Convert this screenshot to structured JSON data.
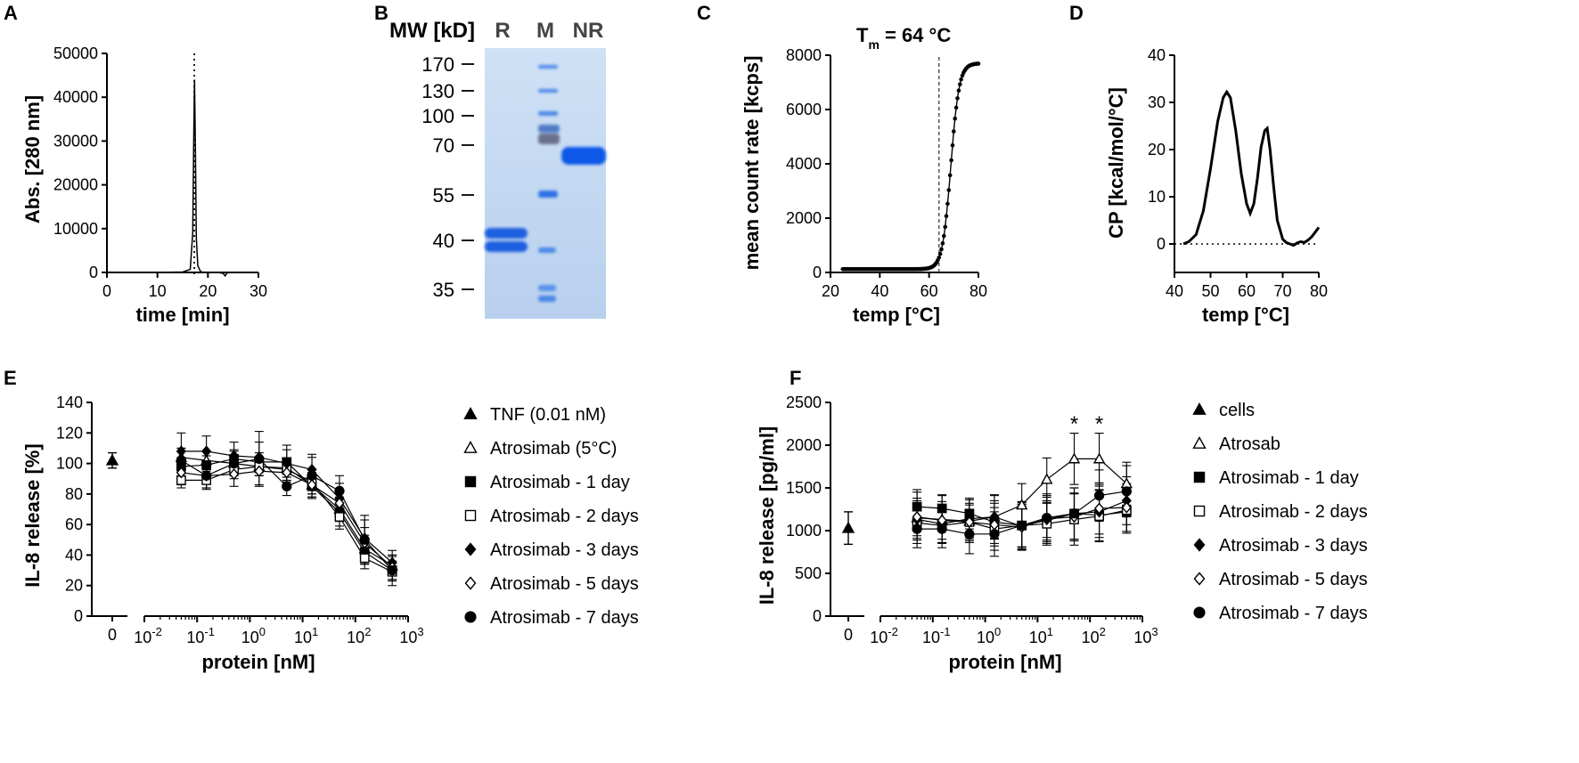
{
  "panels": {
    "a": "A",
    "b": "B",
    "c": "C",
    "d": "D",
    "e": "E",
    "f": "F"
  },
  "chart_data": [
    {
      "id": "A",
      "type": "line",
      "title": "",
      "xlabel": "time [min]",
      "ylabel": "Abs. [280 nm]",
      "xlim": [
        0,
        30
      ],
      "ylim": [
        0,
        50000
      ],
      "xticks": [
        "0",
        "10",
        "20",
        "30"
      ],
      "yticks": [
        "0",
        "10000",
        "20000",
        "30000",
        "40000",
        "50000"
      ],
      "x": [
        0,
        5,
        10,
        15,
        16.5,
        17.0,
        17.2,
        17.35,
        17.5,
        17.7,
        18.0,
        18.5,
        19,
        20,
        22,
        23,
        23.4,
        23.8,
        25,
        27,
        30
      ],
      "y": [
        0,
        0,
        0,
        100,
        700,
        9000,
        32000,
        44000,
        30000,
        8000,
        1500,
        300,
        0,
        0,
        0,
        -200,
        -800,
        -100,
        0,
        0,
        0
      ],
      "annotations": [
        "dotted vertical line at 17.3 min"
      ]
    },
    {
      "id": "B",
      "type": "gel",
      "header": "MW [kD]",
      "lanes": [
        "R",
        "M",
        "NR"
      ],
      "markers": [
        "170",
        "130",
        "100",
        "70",
        "55",
        "40",
        "35"
      ]
    },
    {
      "id": "C",
      "type": "scatter",
      "annotation": "T",
      "annotation_sub": "m",
      "annotation_value": " = 64 °C",
      "tm": 64,
      "xlabel": "temp [°C]",
      "ylabel": "mean count rate [kcps]",
      "xlim": [
        20,
        80
      ],
      "ylim": [
        0,
        8000
      ],
      "xticks": [
        "20",
        "40",
        "60",
        "80"
      ],
      "yticks": [
        "0",
        "2000",
        "4000",
        "6000",
        "8000"
      ],
      "sigmoid": {
        "base": 120,
        "top": 7700,
        "midpoint": 68.8,
        "slope": 1.7,
        "x_start": 25,
        "x_end": 80
      }
    },
    {
      "id": "D",
      "type": "line",
      "xlabel": "temp [°C]",
      "ylabel": "CP [kcal/mol/°C]",
      "xlim": [
        40,
        80
      ],
      "ylim": [
        0,
        40
      ],
      "xticks": [
        "40",
        "50",
        "60",
        "70",
        "80"
      ],
      "yticks": [
        "0",
        "10",
        "20",
        "30",
        "40"
      ],
      "x": [
        42.5,
        44,
        46,
        48,
        50,
        52,
        53.5,
        54.5,
        55.5,
        57,
        58.5,
        60,
        61,
        62,
        63,
        64,
        65,
        65.7,
        66.5,
        67.5,
        68.5,
        70,
        71,
        72,
        73,
        74,
        75,
        76,
        77,
        78,
        79,
        80
      ],
      "y": [
        0,
        0.5,
        2,
        7,
        16,
        26,
        31,
        32.2,
        31,
        24,
        15,
        8.5,
        6.5,
        8.5,
        14,
        20.5,
        24,
        24.5,
        20,
        12,
        5,
        1,
        0.3,
        0,
        -0.3,
        0.2,
        0.5,
        0.3,
        0.8,
        1.5,
        2.5,
        3.5
      ],
      "baseline": 0
    },
    {
      "id": "E",
      "type": "scatter",
      "xlabel": "protein [nM]",
      "ylabel": "IL-8 release [%]",
      "ylim": [
        0,
        140
      ],
      "yticks": [
        "0",
        "20",
        "40",
        "60",
        "80",
        "100",
        "120",
        "140"
      ],
      "x_break_label": "0",
      "xticks": [
        "10",
        "10",
        "10",
        "10",
        "10",
        "10"
      ],
      "xtick_exps": [
        "-2",
        "-1",
        "0",
        "1",
        "2",
        "3"
      ],
      "x_nM": [
        0.05,
        0.15,
        0.5,
        1.5,
        5,
        15,
        50,
        150,
        500
      ],
      "control": {
        "name": "TNF (0.01 nM)",
        "marker": "triangle-filled",
        "value": 102,
        "err": 5
      },
      "series": [
        {
          "name": "Atrosimab (5°C)",
          "marker": "triangle-open",
          "values": [
            104,
            102,
            100,
            98,
            97,
            86,
            70,
            44,
            33
          ],
          "err": [
            6,
            6,
            5,
            6,
            6,
            8,
            8,
            9,
            6
          ]
        },
        {
          "name": "Atrosimab - 1 day",
          "marker": "square-filled",
          "values": [
            98,
            99,
            103,
            101,
            101,
            85,
            68,
            42,
            30
          ],
          "err": [
            6,
            6,
            6,
            6,
            8,
            8,
            9,
            8,
            6
          ]
        },
        {
          "name": "Atrosimab - 2 days",
          "marker": "square-open",
          "values": [
            89,
            89,
            96,
            98,
            96,
            88,
            65,
            38,
            29
          ],
          "err": [
            5,
            6,
            6,
            6,
            7,
            8,
            8,
            7,
            6
          ]
        },
        {
          "name": "Atrosimab - 3 days",
          "marker": "diamond-filled",
          "values": [
            108,
            108,
            105,
            104,
            100,
            96,
            77,
            51,
            35
          ],
          "err": [
            12,
            10,
            9,
            10,
            12,
            10,
            10,
            12,
            8
          ]
        },
        {
          "name": "Atrosimab - 5 days",
          "marker": "diamond-open",
          "values": [
            94,
            92,
            93,
            95,
            94,
            86,
            74,
            48,
            32
          ],
          "err": [
            8,
            8,
            8,
            9,
            9,
            8,
            9,
            10,
            8
          ]
        },
        {
          "name": "Atrosimab - 7 days",
          "marker": "circle-filled",
          "values": [
            102,
            92,
            100,
            103,
            85,
            92,
            82,
            50,
            30
          ],
          "err": [
            8,
            8,
            8,
            18,
            6,
            12,
            10,
            16,
            10
          ]
        }
      ]
    },
    {
      "id": "F",
      "type": "scatter",
      "xlabel": "protein [nM]",
      "ylabel": "IL-8 release [pg/ml]",
      "ylim": [
        0,
        2500
      ],
      "yticks": [
        "0",
        "500",
        "1000",
        "1500",
        "2000",
        "2500"
      ],
      "x_break_label": "0",
      "xticks": [
        "10",
        "10",
        "10",
        "10",
        "10",
        "10"
      ],
      "xtick_exps": [
        "-2",
        "-1",
        "0",
        "1",
        "2",
        "3"
      ],
      "x_nM": [
        0.05,
        0.15,
        0.5,
        1.5,
        5,
        15,
        50,
        150,
        500
      ],
      "significance": "*",
      "significance_at": [
        50,
        150
      ],
      "control": {
        "name": "cells",
        "marker": "triangle-filled",
        "value": 1030,
        "err": 190
      },
      "series": [
        {
          "name": "Atrosab",
          "marker": "triangle-open",
          "values": [
            1150,
            1130,
            1110,
            1160,
            1300,
            1600,
            1840,
            1840,
            1550
          ],
          "err": [
            300,
            280,
            250,
            250,
            250,
            250,
            300,
            300,
            250
          ]
        },
        {
          "name": "Atrosimab - 1 day",
          "marker": "square-filled",
          "values": [
            1280,
            1260,
            1200,
            1100,
            1060,
            1120,
            1200,
            1180,
            1220
          ],
          "err": [
            200,
            160,
            180,
            250,
            250,
            200,
            300,
            300,
            250
          ]
        },
        {
          "name": "Atrosimab - 2 days",
          "marker": "square-open",
          "values": [
            1090,
            1060,
            1100,
            1020,
            1060,
            1080,
            1130,
            1170,
            1240
          ],
          "err": [
            200,
            200,
            200,
            250,
            250,
            250,
            300,
            300,
            250
          ]
        },
        {
          "name": "Atrosimab - 3 days",
          "marker": "diamond-filled",
          "values": [
            1130,
            1080,
            1140,
            1160,
            1050,
            1130,
            1200,
            1220,
            1350
          ],
          "err": [
            220,
            220,
            220,
            260,
            280,
            280,
            300,
            300,
            280
          ]
        },
        {
          "name": "Atrosimab - 5 days",
          "marker": "diamond-open",
          "values": [
            1160,
            1120,
            1100,
            1070,
            1040,
            1140,
            1160,
            1260,
            1270
          ],
          "err": [
            220,
            220,
            220,
            250,
            250,
            250,
            280,
            300,
            280
          ]
        },
        {
          "name": "Atrosimab - 7 days",
          "marker": "circle-filled",
          "values": [
            1020,
            1020,
            960,
            960,
            1060,
            1150,
            1200,
            1410,
            1460
          ],
          "err": [
            220,
            220,
            230,
            260,
            280,
            280,
            300,
            300,
            300
          ]
        }
      ]
    }
  ]
}
